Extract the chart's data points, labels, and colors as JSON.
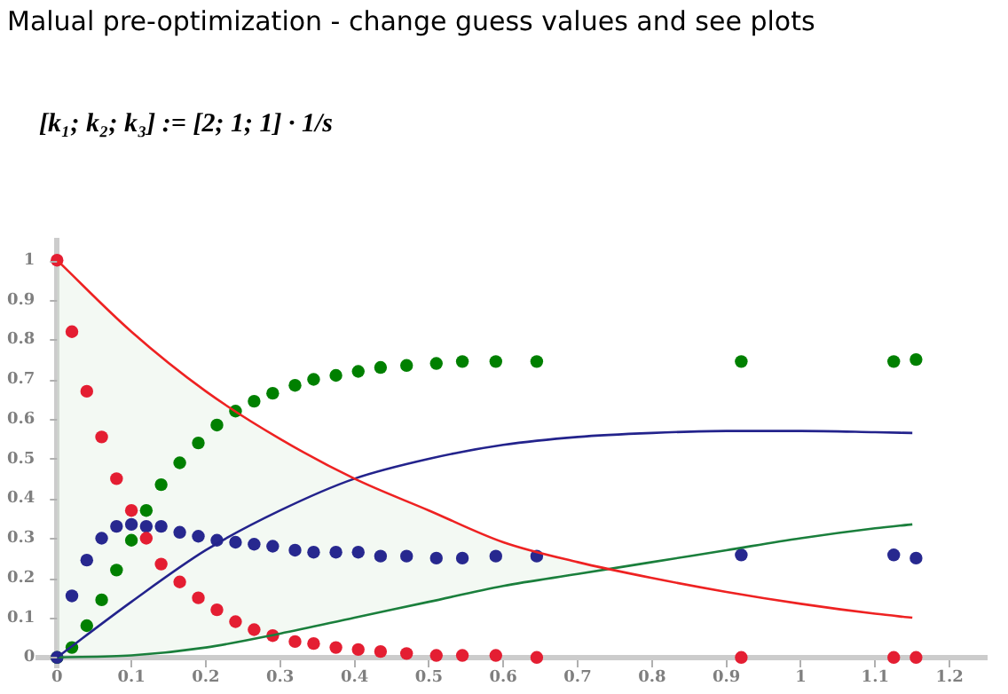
{
  "chart_data": {
    "type": "scatter",
    "title": "Malual pre-optimization - change guess values and see plots",
    "annotations": [
      "[k₁; k₂; k₃] := [2; 1; 1] · 1/s"
    ],
    "xlim": [
      -0.025,
      1.25
    ],
    "ylim": [
      -0.025,
      1.05
    ],
    "xticks": [
      0,
      0.1,
      0.2,
      0.3,
      0.4,
      0.5,
      0.6,
      0.7,
      0.8,
      0.9,
      1,
      1.1,
      1.2
    ],
    "yticks": [
      0,
      0.1,
      0.2,
      0.3,
      0.4,
      0.5,
      0.6,
      0.7,
      0.8,
      0.9,
      1
    ],
    "grid": false,
    "legend": false,
    "marker": "circle",
    "series": [
      {
        "type": "line",
        "color": "#ee2222",
        "marker": "none",
        "x": [
          0,
          0.1,
          0.2,
          0.3,
          0.4,
          0.5,
          0.6,
          0.7,
          0.8,
          0.9,
          1,
          1.1,
          1.15
        ],
        "values": [
          1,
          0.82,
          0.67,
          0.55,
          0.45,
          0.37,
          0.29,
          0.24,
          0.2,
          0.165,
          0.135,
          0.11,
          0.1
        ],
        "lower": [
          0,
          0.005,
          0.025,
          0.06,
          0.1,
          0.14,
          0.18,
          0.21,
          0.24,
          0.27,
          0.3,
          0.325,
          0.335
        ],
        "upper": [
          1,
          0.82,
          0.67,
          0.55,
          0.45,
          0.37,
          0.29,
          0.24,
          0.2,
          0.165,
          0.135,
          0.11,
          0.1
        ]
      },
      {
        "type": "line",
        "color": "#23238c",
        "marker": "none",
        "x": [
          0,
          0.1,
          0.2,
          0.3,
          0.4,
          0.5,
          0.6,
          0.7,
          0.8,
          0.9,
          1,
          1.1,
          1.15
        ],
        "values": [
          0,
          0.14,
          0.27,
          0.37,
          0.45,
          0.5,
          0.535,
          0.555,
          0.565,
          0.57,
          0.57,
          0.567,
          0.565
        ]
      },
      {
        "type": "line",
        "color": "#1a7f3c",
        "marker": "none",
        "x": [
          0,
          0.1,
          0.2,
          0.3,
          0.4,
          0.5,
          0.6,
          0.7,
          0.8,
          0.9,
          1,
          1.1,
          1.15
        ],
        "values": [
          0,
          0.005,
          0.025,
          0.06,
          0.1,
          0.14,
          0.18,
          0.21,
          0.24,
          0.27,
          0.3,
          0.325,
          0.335
        ]
      },
      {
        "type": "scatter",
        "color": "#e41e32",
        "x": [
          0,
          0.02,
          0.04,
          0.06,
          0.08,
          0.1,
          0.12,
          0.14,
          0.165,
          0.19,
          0.215,
          0.24,
          0.265,
          0.29,
          0.32,
          0.345,
          0.375,
          0.405,
          0.435,
          0.47,
          0.51,
          0.545,
          0.59,
          0.645,
          0.92,
          1.125,
          1.155
        ],
        "values": [
          1,
          0.82,
          0.67,
          0.555,
          0.45,
          0.37,
          0.3,
          0.235,
          0.19,
          0.15,
          0.12,
          0.09,
          0.07,
          0.055,
          0.04,
          0.035,
          0.025,
          0.02,
          0.015,
          0.01,
          0.005,
          0.005,
          0.005,
          0,
          0,
          0,
          0
        ]
      },
      {
        "type": "scatter",
        "color": "#27288f",
        "x": [
          0,
          0.02,
          0.04,
          0.06,
          0.08,
          0.1,
          0.12,
          0.14,
          0.165,
          0.19,
          0.215,
          0.24,
          0.265,
          0.29,
          0.32,
          0.345,
          0.375,
          0.405,
          0.435,
          0.47,
          0.51,
          0.545,
          0.59,
          0.645,
          0.92,
          1.125,
          1.155
        ],
        "values": [
          0,
          0.155,
          0.245,
          0.3,
          0.33,
          0.335,
          0.33,
          0.33,
          0.315,
          0.305,
          0.295,
          0.29,
          0.285,
          0.28,
          0.27,
          0.265,
          0.265,
          0.265,
          0.255,
          0.255,
          0.25,
          0.25,
          0.255,
          0.255,
          0.258,
          0.258,
          0.25
        ]
      },
      {
        "type": "scatter",
        "color": "#008000",
        "x": [
          0,
          0.02,
          0.04,
          0.06,
          0.08,
          0.1,
          0.12,
          0.14,
          0.165,
          0.19,
          0.215,
          0.24,
          0.265,
          0.29,
          0.32,
          0.345,
          0.375,
          0.405,
          0.435,
          0.47,
          0.51,
          0.545,
          0.59,
          0.645,
          0.92,
          1.125,
          1.155
        ],
        "values": [
          0,
          0.025,
          0.08,
          0.145,
          0.22,
          0.295,
          0.37,
          0.435,
          0.49,
          0.54,
          0.585,
          0.62,
          0.645,
          0.665,
          0.685,
          0.7,
          0.71,
          0.72,
          0.73,
          0.735,
          0.74,
          0.745,
          0.745,
          0.745,
          0.745,
          0.745,
          0.75
        ]
      }
    ]
  }
}
